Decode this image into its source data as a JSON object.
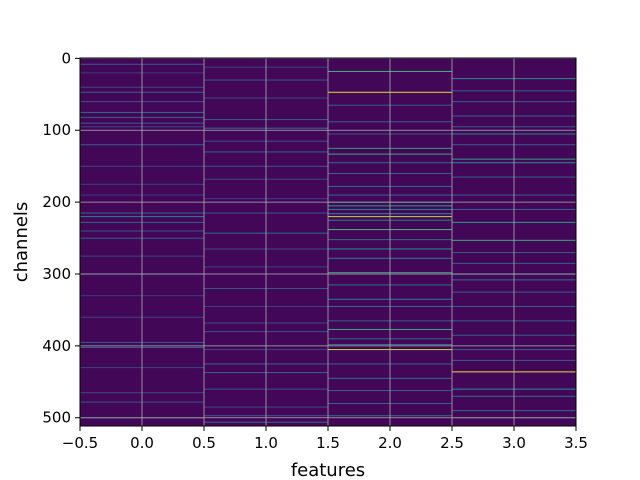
{
  "chart_data": {
    "type": "heatmap",
    "title": "",
    "xlabel": "features",
    "ylabel": "channels",
    "xlim": [
      -0.5,
      3.5
    ],
    "ylim": [
      511.5,
      -0.5
    ],
    "x_ticks": [
      -0.5,
      0.0,
      0.5,
      1.0,
      1.5,
      2.0,
      2.5,
      3.0,
      3.5
    ],
    "x_tick_labels": [
      "−0.5",
      "0.0",
      "0.5",
      "1.0",
      "1.5",
      "2.0",
      "2.5",
      "3.0",
      "3.5"
    ],
    "y_ticks": [
      0,
      100,
      200,
      300,
      400,
      500
    ],
    "y_tick_labels": [
      "0",
      "100",
      "200",
      "300",
      "400",
      "500"
    ],
    "grid": true,
    "colormap": "viridis",
    "value_range": [
      0,
      1
    ],
    "background_value": 0.02,
    "columns": [
      {
        "feature": 0,
        "highlights": [
          {
            "channel": 8,
            "value": 0.28
          },
          {
            "channel": 20,
            "value": 0.18
          },
          {
            "channel": 40,
            "value": 0.22
          },
          {
            "channel": 47,
            "value": 0.3
          },
          {
            "channel": 60,
            "value": 0.25
          },
          {
            "channel": 75,
            "value": 0.35
          },
          {
            "channel": 82,
            "value": 0.3
          },
          {
            "channel": 90,
            "value": 0.28
          },
          {
            "channel": 95,
            "value": 0.22
          },
          {
            "channel": 120,
            "value": 0.3
          },
          {
            "channel": 150,
            "value": 0.2
          },
          {
            "channel": 175,
            "value": 0.2
          },
          {
            "channel": 190,
            "value": 0.18
          },
          {
            "channel": 215,
            "value": 0.32
          },
          {
            "channel": 220,
            "value": 0.45
          },
          {
            "channel": 228,
            "value": 0.3
          },
          {
            "channel": 240,
            "value": 0.25
          },
          {
            "channel": 250,
            "value": 0.3
          },
          {
            "channel": 275,
            "value": 0.2
          },
          {
            "channel": 300,
            "value": 0.25
          },
          {
            "channel": 330,
            "value": 0.18
          },
          {
            "channel": 360,
            "value": 0.2
          },
          {
            "channel": 395,
            "value": 0.28
          },
          {
            "channel": 402,
            "value": 0.35
          },
          {
            "channel": 430,
            "value": 0.2
          },
          {
            "channel": 465,
            "value": 0.22
          },
          {
            "channel": 478,
            "value": 0.25
          },
          {
            "channel": 500,
            "value": 0.35
          }
        ]
      },
      {
        "feature": 1,
        "highlights": [
          {
            "channel": 12,
            "value": 0.2
          },
          {
            "channel": 30,
            "value": 0.25
          },
          {
            "channel": 55,
            "value": 0.22
          },
          {
            "channel": 85,
            "value": 0.3
          },
          {
            "channel": 97,
            "value": 0.38
          },
          {
            "channel": 115,
            "value": 0.25
          },
          {
            "channel": 130,
            "value": 0.3
          },
          {
            "channel": 150,
            "value": 0.25
          },
          {
            "channel": 168,
            "value": 0.22
          },
          {
            "channel": 195,
            "value": 0.2
          },
          {
            "channel": 215,
            "value": 0.25
          },
          {
            "channel": 243,
            "value": 0.35
          },
          {
            "channel": 265,
            "value": 0.22
          },
          {
            "channel": 290,
            "value": 0.2
          },
          {
            "channel": 320,
            "value": 0.25
          },
          {
            "channel": 345,
            "value": 0.2
          },
          {
            "channel": 368,
            "value": 0.22
          },
          {
            "channel": 380,
            "value": 0.25
          },
          {
            "channel": 405,
            "value": 0.22
          },
          {
            "channel": 425,
            "value": 0.3
          },
          {
            "channel": 437,
            "value": 0.32
          },
          {
            "channel": 460,
            "value": 0.25
          },
          {
            "channel": 485,
            "value": 0.22
          },
          {
            "channel": 497,
            "value": 0.28
          },
          {
            "channel": 506,
            "value": 0.35
          }
        ]
      },
      {
        "feature": 2,
        "highlights": [
          {
            "channel": 18,
            "value": 0.65
          },
          {
            "channel": 47,
            "value": 0.95
          },
          {
            "channel": 65,
            "value": 0.3
          },
          {
            "channel": 88,
            "value": 0.28
          },
          {
            "channel": 105,
            "value": 0.25
          },
          {
            "channel": 125,
            "value": 0.55
          },
          {
            "channel": 133,
            "value": 0.6
          },
          {
            "channel": 145,
            "value": 0.35
          },
          {
            "channel": 160,
            "value": 0.3
          },
          {
            "channel": 178,
            "value": 0.35
          },
          {
            "channel": 190,
            "value": 0.32
          },
          {
            "channel": 200,
            "value": 0.4
          },
          {
            "channel": 205,
            "value": 0.55
          },
          {
            "channel": 210,
            "value": 0.45
          },
          {
            "channel": 216,
            "value": 0.5
          },
          {
            "channel": 220,
            "value": 0.9
          },
          {
            "channel": 225,
            "value": 0.45
          },
          {
            "channel": 238,
            "value": 0.65
          },
          {
            "channel": 252,
            "value": 0.35
          },
          {
            "channel": 265,
            "value": 0.5
          },
          {
            "channel": 278,
            "value": 0.4
          },
          {
            "channel": 298,
            "value": 0.6
          },
          {
            "channel": 315,
            "value": 0.35
          },
          {
            "channel": 335,
            "value": 0.4
          },
          {
            "channel": 345,
            "value": 0.35
          },
          {
            "channel": 365,
            "value": 0.3
          },
          {
            "channel": 377,
            "value": 0.6
          },
          {
            "channel": 390,
            "value": 0.35
          },
          {
            "channel": 398,
            "value": 0.4
          },
          {
            "channel": 405,
            "value": 0.9
          },
          {
            "channel": 425,
            "value": 0.3
          },
          {
            "channel": 445,
            "value": 0.35
          },
          {
            "channel": 462,
            "value": 0.3
          },
          {
            "channel": 480,
            "value": 0.3
          },
          {
            "channel": 497,
            "value": 0.35
          }
        ]
      },
      {
        "feature": 3,
        "highlights": [
          {
            "channel": 28,
            "value": 0.5
          },
          {
            "channel": 45,
            "value": 0.3
          },
          {
            "channel": 60,
            "value": 0.3
          },
          {
            "channel": 80,
            "value": 0.3
          },
          {
            "channel": 95,
            "value": 0.3
          },
          {
            "channel": 105,
            "value": 0.45
          },
          {
            "channel": 120,
            "value": 0.3
          },
          {
            "channel": 140,
            "value": 0.55
          },
          {
            "channel": 145,
            "value": 0.5
          },
          {
            "channel": 165,
            "value": 0.3
          },
          {
            "channel": 190,
            "value": 0.3
          },
          {
            "channel": 210,
            "value": 0.3
          },
          {
            "channel": 228,
            "value": 0.55
          },
          {
            "channel": 253,
            "value": 0.6
          },
          {
            "channel": 270,
            "value": 0.3
          },
          {
            "channel": 285,
            "value": 0.3
          },
          {
            "channel": 300,
            "value": 0.45
          },
          {
            "channel": 308,
            "value": 0.35
          },
          {
            "channel": 325,
            "value": 0.3
          },
          {
            "channel": 345,
            "value": 0.3
          },
          {
            "channel": 365,
            "value": 0.3
          },
          {
            "channel": 385,
            "value": 0.3
          },
          {
            "channel": 405,
            "value": 0.3
          },
          {
            "channel": 420,
            "value": 0.3
          },
          {
            "channel": 436,
            "value": 0.95
          },
          {
            "channel": 460,
            "value": 0.5
          },
          {
            "channel": 470,
            "value": 0.35
          },
          {
            "channel": 490,
            "value": 0.35
          },
          {
            "channel": 500,
            "value": 0.3
          }
        ]
      }
    ]
  }
}
